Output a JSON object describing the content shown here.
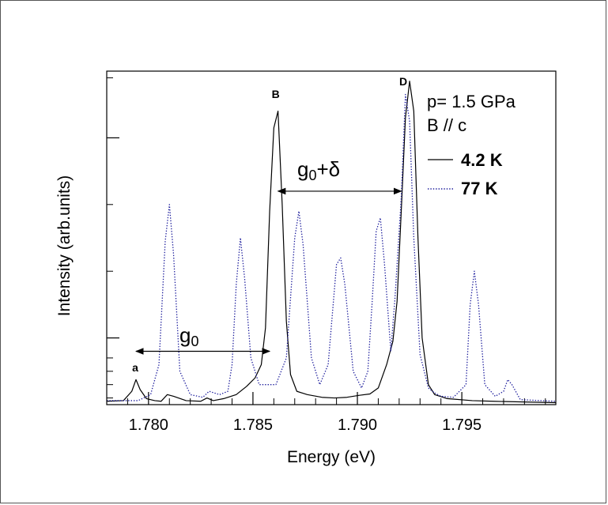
{
  "chart_data": {
    "type": "line",
    "xlabel": "Energy (eV)",
    "ylabel": "Intensity (arb.units)",
    "xlim": [
      1.778,
      1.7995
    ],
    "ylim": [
      0,
      1
    ],
    "x_ticks": [
      "1.780",
      "1.785",
      "1.790",
      "1.795"
    ],
    "x_tick_values": [
      1.78,
      1.785,
      1.79,
      1.795
    ],
    "grid": false,
    "legend_position": "top-right",
    "legend_header": [
      "p= 1.5 GPa",
      "B // c"
    ],
    "series": [
      {
        "name": "4.2 K",
        "style": "solid",
        "color": "#000000",
        "points": [
          [
            1.778,
            0.01
          ],
          [
            1.7788,
            0.012
          ],
          [
            1.7792,
            0.04
          ],
          [
            1.7794,
            0.075
          ],
          [
            1.7796,
            0.045
          ],
          [
            1.7799,
            0.018
          ],
          [
            1.7803,
            0.012
          ],
          [
            1.7806,
            0.01
          ],
          [
            1.7809,
            0.03
          ],
          [
            1.7812,
            0.025
          ],
          [
            1.7818,
            0.012
          ],
          [
            1.7825,
            0.01
          ],
          [
            1.7828,
            0.02
          ],
          [
            1.7831,
            0.012
          ],
          [
            1.7836,
            0.018
          ],
          [
            1.7842,
            0.03
          ],
          [
            1.7847,
            0.055
          ],
          [
            1.7851,
            0.08
          ],
          [
            1.7854,
            0.12
          ],
          [
            1.7856,
            0.23
          ],
          [
            1.7858,
            0.58
          ],
          [
            1.786,
            0.83
          ],
          [
            1.7862,
            0.88
          ],
          [
            1.7864,
            0.6
          ],
          [
            1.7866,
            0.25
          ],
          [
            1.7868,
            0.09
          ],
          [
            1.7871,
            0.04
          ],
          [
            1.7876,
            0.03
          ],
          [
            1.7883,
            0.022
          ],
          [
            1.7889,
            0.02
          ],
          [
            1.7895,
            0.022
          ],
          [
            1.7901,
            0.028
          ],
          [
            1.7906,
            0.032
          ],
          [
            1.791,
            0.05
          ],
          [
            1.7914,
            0.12
          ],
          [
            1.7917,
            0.19
          ],
          [
            1.7919,
            0.31
          ],
          [
            1.7921,
            0.58
          ],
          [
            1.7923,
            0.86
          ],
          [
            1.7925,
            0.97
          ],
          [
            1.7927,
            0.88
          ],
          [
            1.7929,
            0.5
          ],
          [
            1.7931,
            0.2
          ],
          [
            1.7934,
            0.06
          ],
          [
            1.7937,
            0.03
          ],
          [
            1.7943,
            0.018
          ],
          [
            1.7955,
            0.012
          ],
          [
            1.7965,
            0.01
          ],
          [
            1.798,
            0.008
          ],
          [
            1.7995,
            0.006
          ]
        ]
      },
      {
        "name": "77 K",
        "style": "dotted",
        "color": "#1c1c9c",
        "points": [
          [
            1.778,
            0.012
          ],
          [
            1.7795,
            0.012
          ],
          [
            1.7801,
            0.03
          ],
          [
            1.7805,
            0.12
          ],
          [
            1.7808,
            0.49
          ],
          [
            1.781,
            0.6
          ],
          [
            1.7812,
            0.45
          ],
          [
            1.7815,
            0.1
          ],
          [
            1.782,
            0.03
          ],
          [
            1.7826,
            0.022
          ],
          [
            1.7829,
            0.04
          ],
          [
            1.7834,
            0.03
          ],
          [
            1.7838,
            0.04
          ],
          [
            1.784,
            0.12
          ],
          [
            1.7842,
            0.36
          ],
          [
            1.7844,
            0.5
          ],
          [
            1.7846,
            0.38
          ],
          [
            1.7849,
            0.14
          ],
          [
            1.7853,
            0.06
          ],
          [
            1.7861,
            0.06
          ],
          [
            1.7866,
            0.14
          ],
          [
            1.787,
            0.5
          ],
          [
            1.7872,
            0.58
          ],
          [
            1.7874,
            0.48
          ],
          [
            1.7878,
            0.14
          ],
          [
            1.7882,
            0.06
          ],
          [
            1.7886,
            0.12
          ],
          [
            1.789,
            0.42
          ],
          [
            1.7892,
            0.44
          ],
          [
            1.7894,
            0.36
          ],
          [
            1.7898,
            0.1
          ],
          [
            1.7902,
            0.05
          ],
          [
            1.7905,
            0.1
          ],
          [
            1.7907,
            0.3
          ],
          [
            1.7909,
            0.52
          ],
          [
            1.7911,
            0.56
          ],
          [
            1.7913,
            0.42
          ],
          [
            1.7916,
            0.16
          ],
          [
            1.7918,
            0.32
          ],
          [
            1.7921,
            0.62
          ],
          [
            1.7923,
            0.93
          ],
          [
            1.7925,
            0.85
          ],
          [
            1.7927,
            0.5
          ],
          [
            1.793,
            0.15
          ],
          [
            1.7934,
            0.05
          ],
          [
            1.7937,
            0.035
          ],
          [
            1.794,
            0.025
          ],
          [
            1.7946,
            0.022
          ],
          [
            1.7952,
            0.06
          ],
          [
            1.7954,
            0.3
          ],
          [
            1.7956,
            0.4
          ],
          [
            1.7958,
            0.3
          ],
          [
            1.7961,
            0.06
          ],
          [
            1.7966,
            0.025
          ],
          [
            1.797,
            0.04
          ],
          [
            1.7972,
            0.075
          ],
          [
            1.7974,
            0.06
          ],
          [
            1.7978,
            0.015
          ],
          [
            1.7995,
            0.01
          ]
        ]
      }
    ],
    "annotations": {
      "peak_a": {
        "label": "a",
        "x": 1.7794
      },
      "peak_b": {
        "label": "B",
        "x": 1.7862
      },
      "peak_d": {
        "label": "D",
        "x": 1.7925
      },
      "g0": {
        "label": "g",
        "sub": "0",
        "x_start": 1.7794,
        "x_end": 1.7858,
        "y": 0.16
      },
      "g0_delta": {
        "label": "g",
        "sub": "0",
        "suffix": "+δ",
        "x_start": 1.7862,
        "x_end": 1.7921,
        "y": 0.64
      }
    }
  }
}
